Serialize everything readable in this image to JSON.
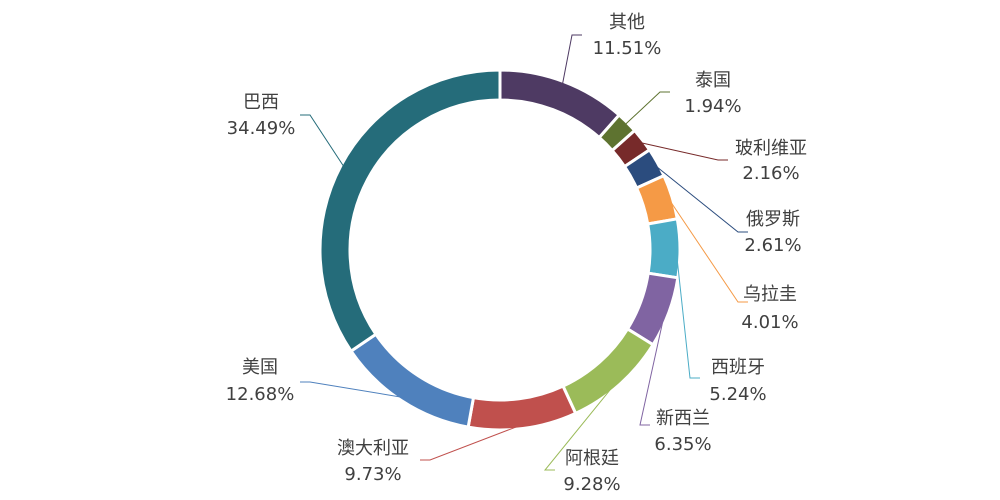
{
  "chart_data": {
    "type": "donut",
    "title": "",
    "slices": [
      {
        "name": "其他",
        "value": 11.51,
        "label": "11.51%",
        "color": "#4e3a63"
      },
      {
        "name": "泰国",
        "value": 1.94,
        "label": "1.94%",
        "color": "#5e7330"
      },
      {
        "name": "玻利维亚",
        "value": 2.16,
        "label": "2.16%",
        "color": "#772a2a"
      },
      {
        "name": "俄罗斯",
        "value": 2.61,
        "label": "2.61%",
        "color": "#2b4c7e"
      },
      {
        "name": "乌拉圭",
        "value": 4.01,
        "label": "4.01%",
        "color": "#f59a46"
      },
      {
        "name": "西班牙",
        "value": 5.24,
        "label": "5.24%",
        "color": "#4bacc6"
      },
      {
        "name": "新西兰",
        "value": 6.35,
        "label": "6.35%",
        "color": "#8064a2"
      },
      {
        "name": "阿根廷",
        "value": 9.28,
        "label": "9.28%",
        "color": "#9bbb59"
      },
      {
        "name": "澳大利亚",
        "value": 9.73,
        "label": "9.73%",
        "color": "#c0504d"
      },
      {
        "name": "美国",
        "value": 12.68,
        "label": "12.68%",
        "color": "#4f81bd"
      },
      {
        "name": "巴西",
        "value": 34.49,
        "label": "34.49%",
        "color": "#256c7a"
      }
    ]
  }
}
